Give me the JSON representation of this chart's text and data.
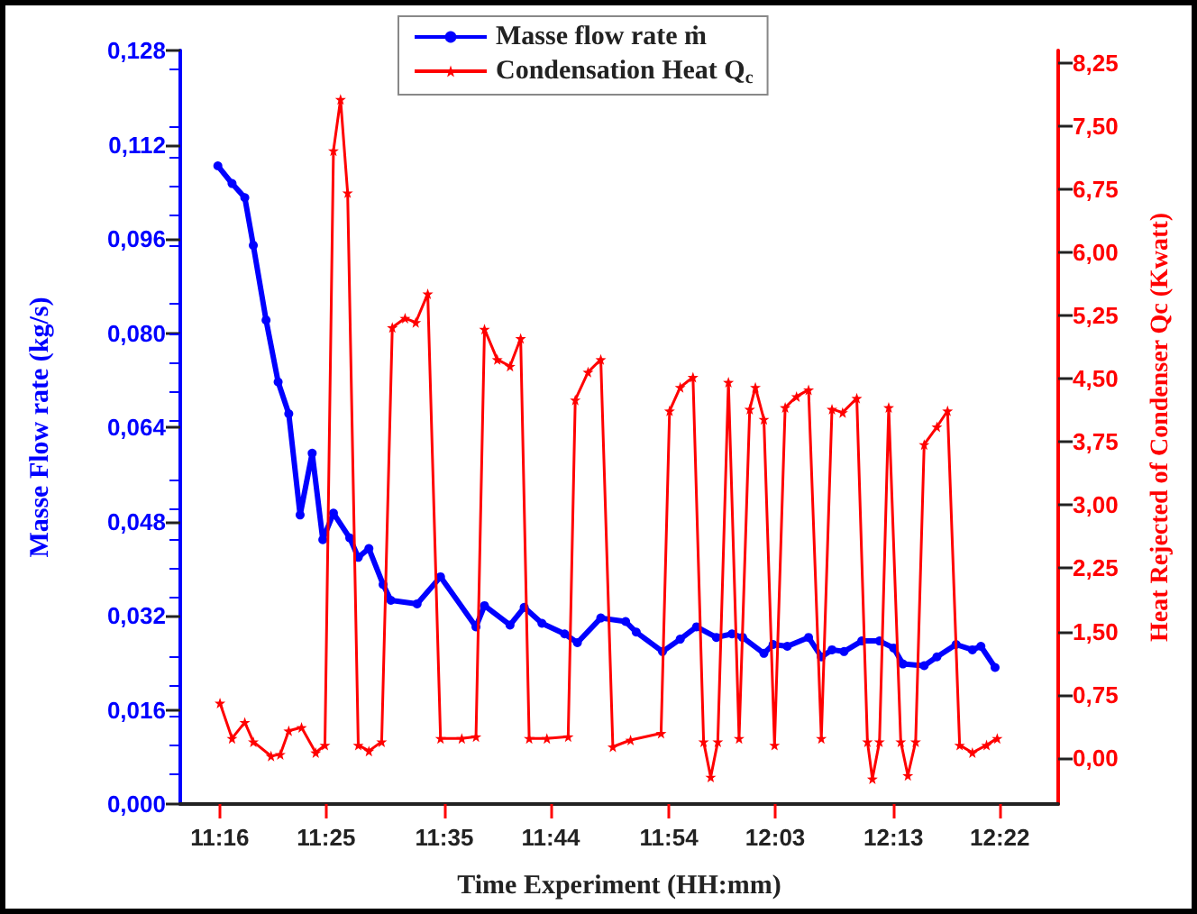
{
  "chart_data": {
    "type": "line",
    "xlabel": "Time Experiment (HH:mm)",
    "ylabel": "Masse Flow rate (kg/s)",
    "y2label": "Heat Rejected of Condenser Qc (Kwatt)",
    "legend": "top",
    "grid": false,
    "xlim": [
      11.211,
      12.449
    ],
    "xticks": [
      {
        "value": 11.2667,
        "label": "11:16"
      },
      {
        "value": 11.4167,
        "label": "11:25"
      },
      {
        "value": 11.5833,
        "label": "11:35"
      },
      {
        "value": 11.7333,
        "label": "11:44"
      },
      {
        "value": 11.9,
        "label": "11:54"
      },
      {
        "value": 12.05,
        "label": "12:03"
      },
      {
        "value": 12.2167,
        "label": "12:13"
      },
      {
        "value": 12.3667,
        "label": "12:22"
      }
    ],
    "ylim": [
      0,
      0.128
    ],
    "yticks": [
      {
        "value": 0,
        "label": "0,000"
      },
      {
        "value": 0.016,
        "label": "0,016"
      },
      {
        "value": 0.032,
        "label": "0,032"
      },
      {
        "value": 0.048,
        "label": "0,048"
      },
      {
        "value": 0.064,
        "label": "0,064"
      },
      {
        "value": 0.08,
        "label": "0,080"
      },
      {
        "value": 0.096,
        "label": "0,096"
      },
      {
        "value": 0.112,
        "label": "0,112"
      },
      {
        "value": 0.128,
        "label": "0,128"
      }
    ],
    "y2lim": [
      -0.55,
      8.4
    ],
    "y2ticks": [
      {
        "value": 0,
        "label": "0,00"
      },
      {
        "value": 0.75,
        "label": "0,75"
      },
      {
        "value": 1.5,
        "label": "1,50"
      },
      {
        "value": 2.25,
        "label": "2,25"
      },
      {
        "value": 3,
        "label": "3,00"
      },
      {
        "value": 3.75,
        "label": "3,75"
      },
      {
        "value": 4.5,
        "label": "4,50"
      },
      {
        "value": 5.25,
        "label": "5,25"
      },
      {
        "value": 6,
        "label": "6,00"
      },
      {
        "value": 6.75,
        "label": "6,75"
      },
      {
        "value": 7.5,
        "label": "7,50"
      },
      {
        "value": 8.25,
        "label": "8,25"
      }
    ],
    "series": [
      {
        "name": "Masse flow rate ṁ",
        "color": "#0000ff",
        "marker": "circle",
        "x": [
          11.264,
          11.284,
          11.302,
          11.314,
          11.332,
          11.349,
          11.364,
          11.38,
          11.397,
          11.412,
          11.427,
          11.45,
          11.462,
          11.477,
          11.497,
          11.508,
          11.545,
          11.578,
          11.628,
          11.64,
          11.676,
          11.696,
          11.721,
          11.753,
          11.771,
          11.804,
          11.839,
          11.854,
          11.891,
          11.916,
          11.939,
          11.967,
          11.989,
          12.004,
          12.034,
          12.047,
          12.067,
          12.097,
          12.115,
          12.13,
          12.147,
          12.172,
          12.197,
          12.217,
          12.23,
          12.26,
          12.278,
          12.305,
          12.328,
          12.34,
          12.36
        ],
        "values": [
          0.1084,
          0.1054,
          0.103,
          0.0949,
          0.0822,
          0.0717,
          0.0663,
          0.0491,
          0.0596,
          0.0449,
          0.0494,
          0.0452,
          0.0419,
          0.0434,
          0.0373,
          0.0346,
          0.034,
          0.0386,
          0.0301,
          0.0337,
          0.0304,
          0.0334,
          0.0307,
          0.0289,
          0.0274,
          0.0316,
          0.031,
          0.0292,
          0.0259,
          0.028,
          0.0301,
          0.0283,
          0.0289,
          0.0283,
          0.0256,
          0.0271,
          0.0268,
          0.0283,
          0.025,
          0.0262,
          0.0259,
          0.0277,
          0.0277,
          0.0265,
          0.0238,
          0.0235,
          0.025,
          0.0271,
          0.0262,
          0.0268,
          0.0232
        ]
      },
      {
        "name": "Condensation Heat Q$_{c}$",
        "color": "#ff0000",
        "marker": "star",
        "axis": "y2",
        "x": [
          11.267,
          11.284,
          11.302,
          11.314,
          11.339,
          11.352,
          11.364,
          11.382,
          11.402,
          11.415,
          11.427,
          11.437,
          11.447,
          11.462,
          11.477,
          11.495,
          11.51,
          11.528,
          11.543,
          11.56,
          11.578,
          11.608,
          11.628,
          11.64,
          11.658,
          11.676,
          11.691,
          11.703,
          11.728,
          11.758,
          11.768,
          11.786,
          11.804,
          11.821,
          11.846,
          11.889,
          11.901,
          11.916,
          11.934,
          11.949,
          11.959,
          11.969,
          11.984,
          11.999,
          12.014,
          12.022,
          12.034,
          12.049,
          12.064,
          12.08,
          12.097,
          12.115,
          12.13,
          12.145,
          12.165,
          12.18,
          12.187,
          12.197,
          12.21,
          12.227,
          12.237,
          12.248,
          12.26,
          12.278,
          12.293,
          12.31,
          12.328,
          12.348,
          12.363
        ],
        "values": [
          0.65,
          0.23,
          0.42,
          0.19,
          0.02,
          0.04,
          0.32,
          0.36,
          0.06,
          0.15,
          7.21,
          7.82,
          6.71,
          0.15,
          0.08,
          0.19,
          5.11,
          5.22,
          5.17,
          5.51,
          0.23,
          0.23,
          0.25,
          5.09,
          4.73,
          4.65,
          4.98,
          0.23,
          0.23,
          0.25,
          4.25,
          4.58,
          4.73,
          0.13,
          0.21,
          0.29,
          4.12,
          4.4,
          4.52,
          0.19,
          -0.23,
          0.19,
          4.46,
          0.23,
          4.14,
          4.4,
          4.02,
          0.15,
          4.16,
          4.29,
          4.37,
          0.23,
          4.14,
          4.1,
          4.27,
          0.19,
          -0.25,
          0.19,
          4.16,
          0.19,
          -0.21,
          0.19,
          3.72,
          3.93,
          4.12,
          0.15,
          0.06,
          0.15,
          0.23
        ]
      }
    ]
  }
}
